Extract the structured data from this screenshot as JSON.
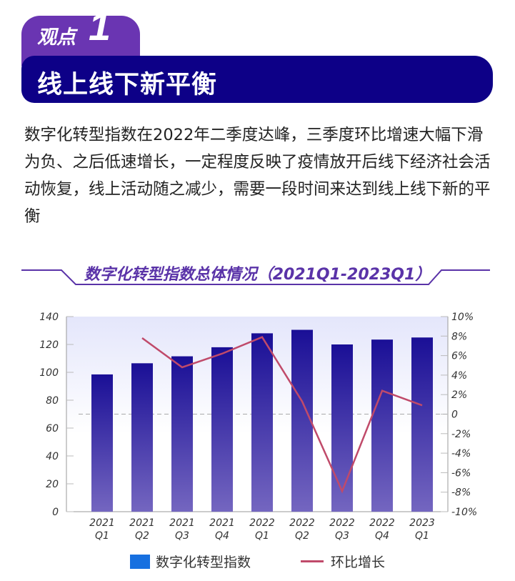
{
  "header": {
    "tab_label": "观点",
    "tab_number": "1",
    "banner_title": "线上线下新平衡"
  },
  "body_text": "数字化转型指数在2022年二季度达峰，三季度环比增速大幅下滑为负、之后低速增长，一定程度反映了疫情放开后线下经济社会活动恢复，线上活动随之减少，需要一段时间来达到线上线下新的平衡",
  "colors": {
    "tab": "#6a35b2",
    "banner": "#0d0087",
    "bar_top": "#1a0f96",
    "bar_bottom": "#7466c0",
    "line": "#c04a6a"
  },
  "chart_data": {
    "type": "bar+line",
    "title": "数字化转型指数总体情况（2021Q1-2023Q1）",
    "categories": [
      [
        "2021",
        "Q1"
      ],
      [
        "2021",
        "Q2"
      ],
      [
        "2021",
        "Q3"
      ],
      [
        "2021",
        "Q4"
      ],
      [
        "2022",
        "Q1"
      ],
      [
        "2022",
        "Q2"
      ],
      [
        "2022",
        "Q3"
      ],
      [
        "2022",
        "Q4"
      ],
      [
        "2023",
        "Q1"
      ]
    ],
    "series": [
      {
        "name": "数字化转型指数",
        "type": "bar",
        "axis": "left",
        "values": [
          98.5,
          106.5,
          111.5,
          118,
          128,
          130.5,
          120,
          123.5,
          125
        ]
      },
      {
        "name": "环比增长",
        "type": "line",
        "axis": "right",
        "values": [
          null,
          7.8,
          4.8,
          6.2,
          7.9,
          1.3,
          -7.9,
          2.4,
          0.9
        ]
      }
    ],
    "left_axis": {
      "ylim": [
        0,
        140
      ],
      "ticks": [
        "0",
        "20",
        "40",
        "60",
        "80",
        "100",
        "120",
        "140"
      ]
    },
    "right_axis": {
      "ylim": [
        -10,
        10
      ],
      "ticks": [
        "-10%",
        "-8%",
        "-6%",
        "-4%",
        "-2%",
        "0",
        "2%",
        "4%",
        "6%",
        "8%",
        "10%"
      ]
    },
    "legend_position": "bottom"
  }
}
